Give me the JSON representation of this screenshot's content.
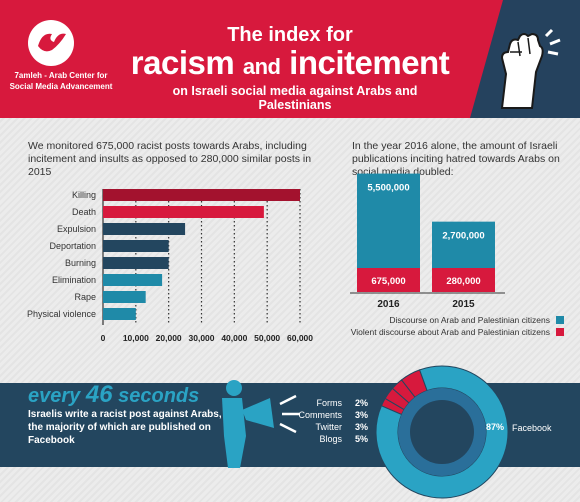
{
  "header": {
    "org_name": "7amleh - Arab Center for Social Media Advancement",
    "title_line1": "The index for",
    "title_line2_a": "racism",
    "title_line2_and": "and",
    "title_line2_b": "incitement",
    "title_line3": "on Israeli social media against Arabs and Palestinians"
  },
  "intro_left": "We monitored 675,000 racist posts towards Arabs, including incitement and insults as opposed to 280,000 similar posts in 2015",
  "intro_right": "In the year 2016 alone, the amount of Israeli publications inciting hatred towards Arabs on social media doubled:",
  "chart_data": [
    {
      "type": "bar",
      "orientation": "horizontal",
      "categories": [
        "Killing",
        "Death",
        "Expulsion",
        "Deportation",
        "Burning",
        "Elimination",
        "Rape",
        "Physical violence"
      ],
      "values": [
        60000,
        49000,
        25000,
        20000,
        20000,
        18000,
        13000,
        10000
      ],
      "colors": [
        "#a3122e",
        "#d7193d",
        "#23465f",
        "#23465f",
        "#23465f",
        "#1f8aa8",
        "#1f8aa8",
        "#1f8aa8"
      ],
      "xlim": [
        0,
        60000
      ],
      "xticks": [
        "0",
        "10,000",
        "20,000",
        "30,000",
        "40,000",
        "50,000",
        "60,000"
      ],
      "grid": "vertical dotted"
    },
    {
      "type": "bar",
      "stacked": true,
      "categories": [
        "2016",
        "2015"
      ],
      "series": [
        {
          "name": "Violent discourse about Arab and Palestinian citizens",
          "values": [
            675000,
            280000
          ],
          "labels": [
            "675,000",
            "280,000"
          ],
          "color": "#d7193d"
        },
        {
          "name": "Discourse on Arab and Palestinian citizens",
          "values": [
            5500000,
            2700000
          ],
          "labels": [
            "5,500,000",
            "2,700,000"
          ],
          "color": "#1f8aa8"
        }
      ]
    },
    {
      "type": "pie",
      "donut": true,
      "categories": [
        "Forms",
        "Comments",
        "Twitter",
        "Blogs",
        "Facebook"
      ],
      "values": [
        2,
        3,
        3,
        5,
        87
      ],
      "labels": [
        "2%",
        "3%",
        "3%",
        "5%",
        "87%"
      ],
      "colors": [
        "#d7193d",
        "#d7193d",
        "#d7193d",
        "#d7193d",
        "#2aa3c4"
      ]
    }
  ],
  "band": {
    "every_prefix": "every",
    "every_num": "46",
    "every_suffix": "seconds",
    "text": "Israelis write a racist post against Arabs, the majority of which are published on Facebook"
  }
}
